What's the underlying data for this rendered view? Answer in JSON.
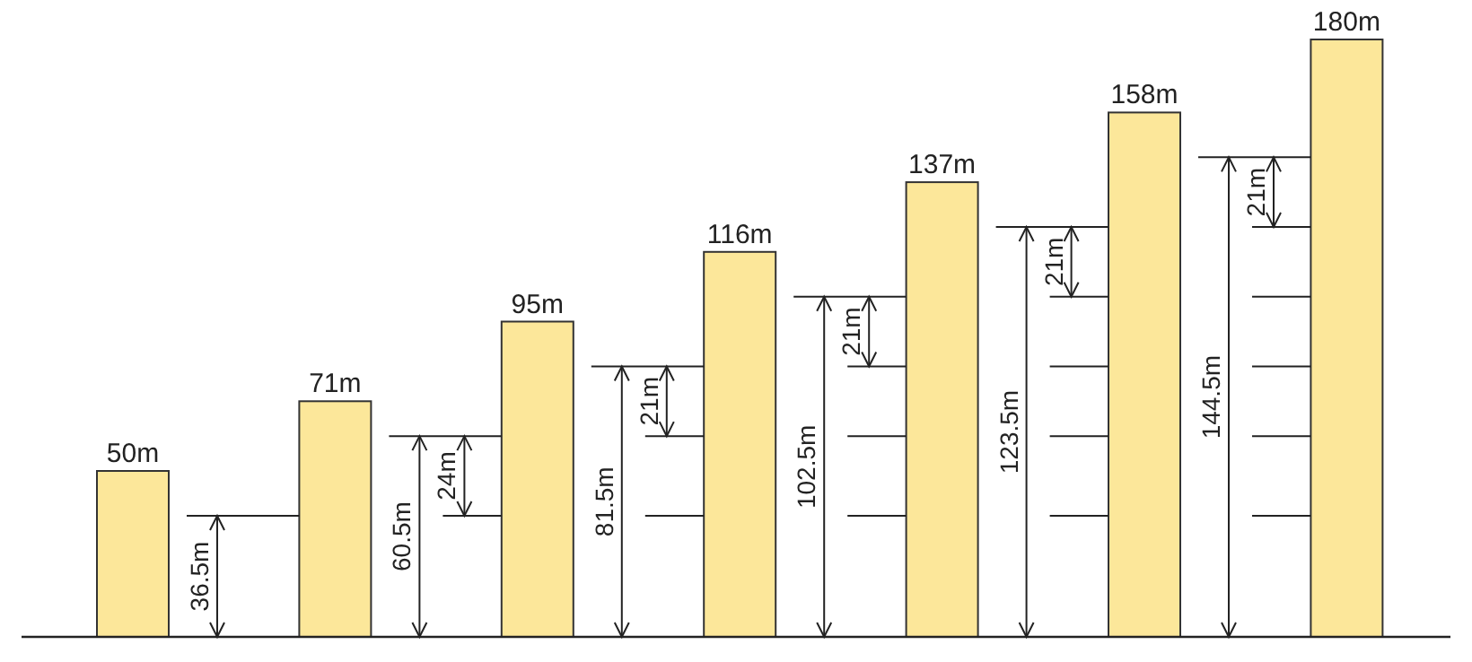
{
  "chart_data": {
    "type": "bar",
    "categories": [
      null,
      null,
      null,
      null,
      null,
      null,
      null
    ],
    "values": [
      50,
      71,
      95,
      116,
      137,
      158,
      180
    ],
    "value_labels": [
      "50m",
      "71m",
      "95m",
      "116m",
      "137m",
      "158m",
      "180m"
    ],
    "color": "#fce79a",
    "annotations": [
      "36.5m",
      "60.5m",
      "24m",
      "81.5m",
      "21m",
      "102.5m",
      "21m",
      "123.5m",
      "21m",
      "144.5m",
      "21m"
    ]
  }
}
